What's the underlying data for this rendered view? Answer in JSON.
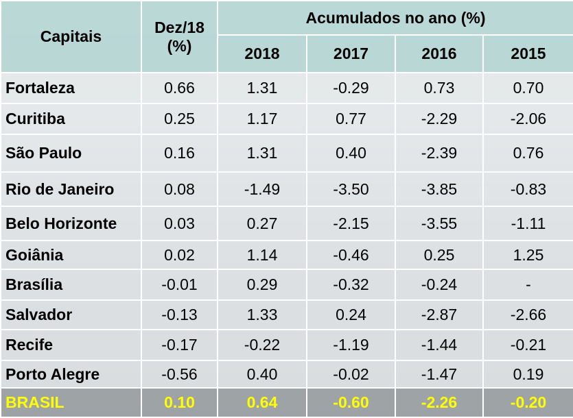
{
  "table": {
    "header": {
      "capitais": "Capitais",
      "dez": "Dez/18\n(%)",
      "group": "Acumulados no ano (%)",
      "years": [
        "2018",
        "2017",
        "2016",
        "2015"
      ]
    },
    "rows": [
      [
        "Fortaleza",
        "0.66",
        "1.31",
        "-0.29",
        "0.73",
        "0.70"
      ],
      [
        "Curitiba",
        "0.25",
        "1.17",
        "0.77",
        "-2.29",
        "-2.06"
      ],
      [
        "São Paulo",
        "0.16",
        "1.31",
        "0.40",
        "-2.39",
        "0.76"
      ],
      [
        "Rio de Janeiro",
        "0.08",
        "-1.49",
        "-3.50",
        "-3.85",
        "-0.83"
      ],
      [
        "Belo Horizonte",
        "0.03",
        "0.27",
        "-2.15",
        "-3.55",
        "-1.11"
      ],
      [
        "Goiânia",
        "0.02",
        "1.14",
        "-0.46",
        "0.25",
        "1.25"
      ],
      [
        "Brasília",
        "-0.01",
        "0.29",
        "-0.32",
        "-0.24",
        "-"
      ],
      [
        "Salvador",
        "-0.13",
        "1.33",
        "0.24",
        "-2.87",
        "-2.66"
      ],
      [
        "Recife",
        "-0.17",
        "-0.22",
        "-1.19",
        "-1.44",
        "-0.21"
      ],
      [
        "Porto Alegre",
        "-0.56",
        "0.40",
        "-0.02",
        "-1.47",
        "0.19"
      ]
    ],
    "total": [
      "BRASIL",
      "0.10",
      "0.64",
      "-0.60",
      "-2.26",
      "-0.20"
    ]
  }
}
